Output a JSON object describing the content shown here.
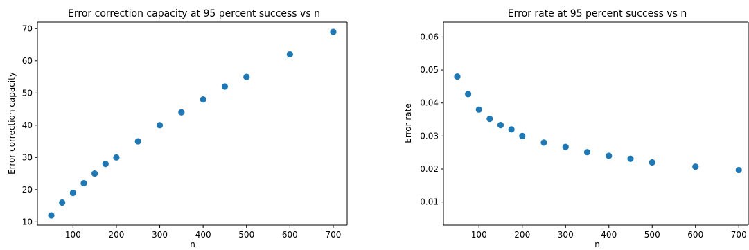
{
  "chart_data": [
    {
      "type": "scatter",
      "title": "Error correction capacity at 95 percent success vs n",
      "xlabel": "n",
      "ylabel": "Error correction capacity",
      "xlim": [
        18,
        732
      ],
      "ylim": [
        9.0,
        72.0
      ],
      "xticks": [
        100,
        200,
        300,
        400,
        500,
        600,
        700
      ],
      "yticks": [
        10,
        20,
        30,
        40,
        50,
        60,
        70
      ],
      "grid": false,
      "color": "#1f77b4",
      "x": [
        50,
        75,
        100,
        125,
        150,
        175,
        200,
        250,
        300,
        350,
        400,
        450,
        500,
        600,
        700
      ],
      "y": [
        12,
        16,
        19,
        22,
        25,
        28,
        30,
        35,
        40,
        44,
        48,
        52,
        55,
        62,
        69
      ]
    },
    {
      "type": "scatter",
      "title": "Error rate at 95 percent success vs n",
      "xlabel": "n",
      "ylabel": "Error rate",
      "xlim": [
        18,
        722
      ],
      "ylim": [
        0.003,
        0.0645
      ],
      "xticks": [
        100,
        200,
        300,
        400,
        500,
        600,
        700
      ],
      "yticks": [
        0.01,
        0.02,
        0.03,
        0.04,
        0.05,
        0.06
      ],
      "ytick_labels": [
        "0.01",
        "0.02",
        "0.03",
        "0.04",
        "0.05",
        "0.06"
      ],
      "grid": false,
      "color": "#1f77b4",
      "x": [
        50,
        75,
        100,
        125,
        150,
        175,
        200,
        250,
        300,
        350,
        400,
        450,
        500,
        600,
        700
      ],
      "y": [
        0.048,
        0.0427,
        0.038,
        0.0352,
        0.0333,
        0.032,
        0.03,
        0.028,
        0.0267,
        0.0251,
        0.024,
        0.0231,
        0.022,
        0.0207,
        0.0197
      ]
    }
  ]
}
